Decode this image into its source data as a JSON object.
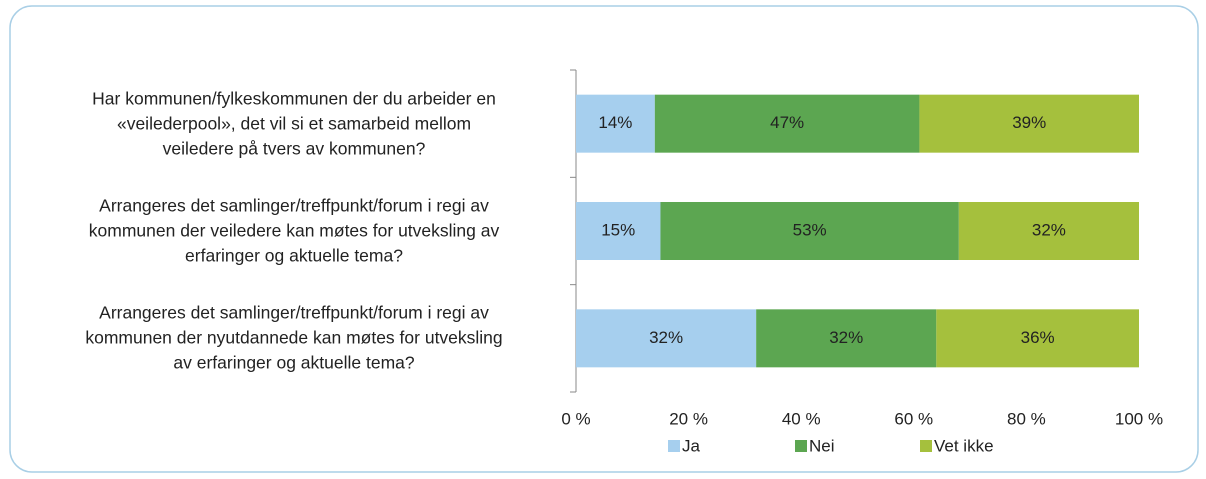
{
  "chart_data": {
    "type": "stacked_bar_horizontal",
    "categories": [
      "Har kommunen/fylkeskommunen der du arbeider en\n«veilederpool», det vil si et samarbeid mellom\nveiledere på tvers av kommunen?",
      "Arrangeres det samlinger/treffpunkt/forum i regi av\nkommunen der veiledere kan møtes for utveksling av\nerfaringer og aktuelle tema?",
      "Arrangeres det samlinger/treffpunkt/forum i regi av\nkommunen der nyutdannede kan møtes for utveksling\nav erfaringer og aktuelle tema?"
    ],
    "series": [
      {
        "name": "Ja",
        "color": "#a6cfee",
        "values": [
          14,
          15,
          32
        ],
        "value_labels": [
          "14%",
          "15%",
          "32%"
        ]
      },
      {
        "name": "Nei",
        "color": "#5ca651",
        "values": [
          47,
          53,
          32
        ],
        "value_labels": [
          "47%",
          "53%",
          "32%"
        ]
      },
      {
        "name": "Vet ikke",
        "color": "#a5c03d",
        "values": [
          39,
          32,
          36
        ],
        "value_labels": [
          "39%",
          "32%",
          "36%"
        ]
      }
    ],
    "xlim": [
      0,
      100
    ],
    "xticks": [
      {
        "value": 0,
        "label": "0 %"
      },
      {
        "value": 20,
        "label": "20 %"
      },
      {
        "value": 40,
        "label": "40 %"
      },
      {
        "value": 60,
        "label": "60 %"
      },
      {
        "value": 80,
        "label": "80 %"
      },
      {
        "value": 100,
        "label": "100 %"
      }
    ],
    "legend": "bottom"
  }
}
